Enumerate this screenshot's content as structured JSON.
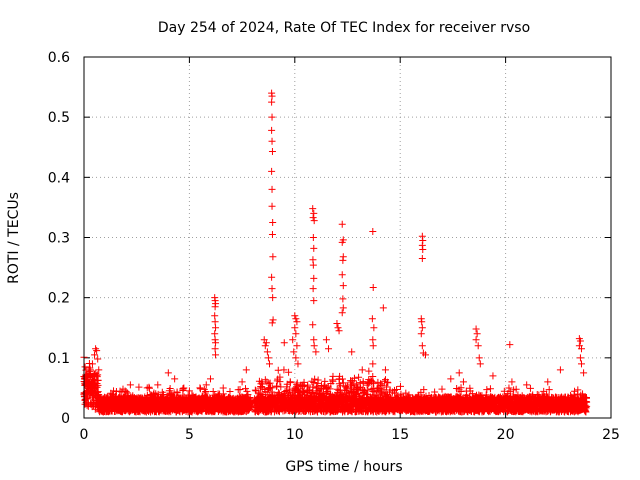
{
  "chart_data": {
    "type": "scatter",
    "title": "Day 254 of 2024, Rate Of TEC Index for receiver rvso",
    "xlabel": "GPS time / hours",
    "ylabel": "ROTI / TECUs",
    "xlim": [
      0,
      25
    ],
    "ylim": [
      0,
      0.6
    ],
    "xticks": [
      0,
      5,
      10,
      15,
      20,
      25
    ],
    "yticks": [
      0,
      0.1,
      0.2,
      0.3,
      0.4,
      0.5,
      0.6
    ],
    "xtick_labels": [
      "0",
      "5",
      "10",
      "15",
      "20",
      "25"
    ],
    "ytick_labels": [
      "0",
      "0.1",
      "0.2",
      "0.3",
      "0.4",
      "0.5",
      "0.6"
    ],
    "grid": true,
    "marker": "+",
    "color": "#ff0000",
    "series": [
      {
        "name": "ROTI",
        "points": [
          [
            0.0,
            0.101
          ],
          [
            0.05,
            0.085
          ],
          [
            0.1,
            0.07
          ],
          [
            0.15,
            0.055
          ],
          [
            0.2,
            0.06
          ],
          [
            0.3,
            0.08
          ],
          [
            0.4,
            0.09
          ],
          [
            0.5,
            0.105
          ],
          [
            0.55,
            0.115
          ],
          [
            0.6,
            0.112
          ],
          [
            0.65,
            0.098
          ],
          [
            0.7,
            0.08
          ],
          [
            1.4,
            0.045
          ],
          [
            2.2,
            0.055
          ],
          [
            3.0,
            0.05
          ],
          [
            3.5,
            0.055
          ],
          [
            4.0,
            0.075
          ],
          [
            4.3,
            0.065
          ],
          [
            5.0,
            0.045
          ],
          [
            5.5,
            0.05
          ],
          [
            5.8,
            0.055
          ],
          [
            6.0,
            0.065
          ],
          [
            6.2,
            0.2
          ],
          [
            6.22,
            0.195
          ],
          [
            6.24,
            0.19
          ],
          [
            6.22,
            0.185
          ],
          [
            6.2,
            0.17
          ],
          [
            6.22,
            0.16
          ],
          [
            6.24,
            0.15
          ],
          [
            6.2,
            0.14
          ],
          [
            6.22,
            0.13
          ],
          [
            6.24,
            0.125
          ],
          [
            6.22,
            0.115
          ],
          [
            6.24,
            0.105
          ],
          [
            7.5,
            0.06
          ],
          [
            7.7,
            0.08
          ],
          [
            8.55,
            0.13
          ],
          [
            8.6,
            0.12
          ],
          [
            8.65,
            0.125
          ],
          [
            8.7,
            0.11
          ],
          [
            8.75,
            0.1
          ],
          [
            8.8,
            0.09
          ],
          [
            8.9,
            0.54
          ],
          [
            8.92,
            0.535
          ],
          [
            8.9,
            0.525
          ],
          [
            8.92,
            0.5
          ],
          [
            8.9,
            0.478
          ],
          [
            8.92,
            0.46
          ],
          [
            8.94,
            0.443
          ],
          [
            8.9,
            0.41
          ],
          [
            8.92,
            0.38
          ],
          [
            8.92,
            0.352
          ],
          [
            8.95,
            0.325
          ],
          [
            8.94,
            0.305
          ],
          [
            8.96,
            0.268
          ],
          [
            8.9,
            0.234
          ],
          [
            8.92,
            0.215
          ],
          [
            8.95,
            0.2
          ],
          [
            8.97,
            0.163
          ],
          [
            8.93,
            0.158
          ],
          [
            9.5,
            0.125
          ],
          [
            10.0,
            0.17
          ],
          [
            10.05,
            0.165
          ],
          [
            10.1,
            0.16
          ],
          [
            10.0,
            0.15
          ],
          [
            10.05,
            0.14
          ],
          [
            9.9,
            0.13
          ],
          [
            10.1,
            0.12
          ],
          [
            9.95,
            0.11
          ],
          [
            10.05,
            0.1
          ],
          [
            10.15,
            0.09
          ],
          [
            10.85,
            0.348
          ],
          [
            10.9,
            0.34
          ],
          [
            10.87,
            0.333
          ],
          [
            10.92,
            0.328
          ],
          [
            10.88,
            0.3
          ],
          [
            10.9,
            0.282
          ],
          [
            10.86,
            0.263
          ],
          [
            10.88,
            0.254
          ],
          [
            10.9,
            0.232
          ],
          [
            10.87,
            0.215
          ],
          [
            10.9,
            0.195
          ],
          [
            10.85,
            0.155
          ],
          [
            10.9,
            0.13
          ],
          [
            10.92,
            0.12
          ],
          [
            11.0,
            0.11
          ],
          [
            11.5,
            0.13
          ],
          [
            11.6,
            0.115
          ],
          [
            12.0,
            0.157
          ],
          [
            12.05,
            0.15
          ],
          [
            12.1,
            0.145
          ],
          [
            12.25,
            0.322
          ],
          [
            12.3,
            0.296
          ],
          [
            12.25,
            0.292
          ],
          [
            12.3,
            0.268
          ],
          [
            12.28,
            0.262
          ],
          [
            12.25,
            0.238
          ],
          [
            12.3,
            0.22
          ],
          [
            12.28,
            0.198
          ],
          [
            12.3,
            0.183
          ],
          [
            12.25,
            0.175
          ],
          [
            12.7,
            0.11
          ],
          [
            13.2,
            0.08
          ],
          [
            13.7,
            0.31
          ],
          [
            13.72,
            0.217
          ],
          [
            13.68,
            0.165
          ],
          [
            13.75,
            0.15
          ],
          [
            13.7,
            0.13
          ],
          [
            13.72,
            0.12
          ],
          [
            13.7,
            0.09
          ],
          [
            14.2,
            0.183
          ],
          [
            14.3,
            0.08
          ],
          [
            16.05,
            0.302
          ],
          [
            16.07,
            0.295
          ],
          [
            16.05,
            0.287
          ],
          [
            16.07,
            0.28
          ],
          [
            16.05,
            0.265
          ],
          [
            16.0,
            0.165
          ],
          [
            16.02,
            0.16
          ],
          [
            16.05,
            0.15
          ],
          [
            16.0,
            0.14
          ],
          [
            16.05,
            0.12
          ],
          [
            16.1,
            0.108
          ],
          [
            16.2,
            0.105
          ],
          [
            17.4,
            0.065
          ],
          [
            17.8,
            0.075
          ],
          [
            18.0,
            0.06
          ],
          [
            18.6,
            0.148
          ],
          [
            18.65,
            0.14
          ],
          [
            18.6,
            0.13
          ],
          [
            18.7,
            0.12
          ],
          [
            18.75,
            0.1
          ],
          [
            18.8,
            0.09
          ],
          [
            19.4,
            0.07
          ],
          [
            20.2,
            0.122
          ],
          [
            20.3,
            0.06
          ],
          [
            21.0,
            0.055
          ],
          [
            22.0,
            0.06
          ],
          [
            22.6,
            0.08
          ],
          [
            23.5,
            0.132
          ],
          [
            23.55,
            0.128
          ],
          [
            23.5,
            0.12
          ],
          [
            23.6,
            0.115
          ],
          [
            23.55,
            0.1
          ],
          [
            23.6,
            0.09
          ],
          [
            23.7,
            0.075
          ]
        ]
      }
    ]
  }
}
